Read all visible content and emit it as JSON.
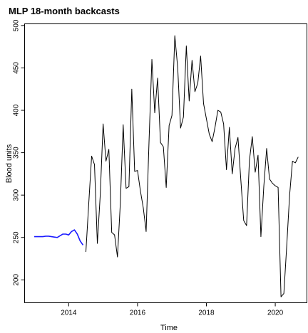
{
  "chart_data": {
    "type": "line",
    "title": "MLP 18-month backcasts",
    "xlabel": "Time",
    "ylabel": "Blood units",
    "xlim": [
      2012.72,
      2020.92
    ],
    "ylim": [
      173,
      502
    ],
    "x_ticks": [
      2014,
      2016,
      2018,
      2020
    ],
    "x_tick_labels": [
      "2014",
      "2016",
      "2018",
      "2020"
    ],
    "y_ticks": [
      200,
      250,
      300,
      350,
      400,
      450,
      500
    ],
    "y_tick_labels": [
      "200",
      "250",
      "300",
      "350",
      "400",
      "450",
      "500"
    ],
    "grid": false,
    "series": [
      {
        "color": "#1a1aff",
        "x": [
          2013.0,
          2013.083,
          2013.167,
          2013.25,
          2013.333,
          2013.417,
          2013.5,
          2013.583,
          2013.667,
          2013.75,
          2013.833,
          2013.917,
          2014.0,
          2014.083,
          2014.167,
          2014.25,
          2014.333,
          2014.417
        ],
        "values": [
          251,
          251,
          251,
          251,
          251.5,
          251.5,
          251,
          250.5,
          250,
          252,
          254,
          254,
          253,
          257,
          259,
          254,
          246,
          241
        ]
      },
      {
        "color": "#000000",
        "x": [
          2014.5,
          2014.583,
          2014.667,
          2014.75,
          2014.833,
          2014.917,
          2015.0,
          2015.083,
          2015.167,
          2015.25,
          2015.333,
          2015.417,
          2015.5,
          2015.583,
          2015.667,
          2015.75,
          2015.833,
          2015.917,
          2016.0,
          2016.083,
          2016.167,
          2016.25,
          2016.333,
          2016.417,
          2016.5,
          2016.583,
          2016.667,
          2016.75,
          2016.833,
          2016.917,
          2017.0,
          2017.083,
          2017.167,
          2017.25,
          2017.333,
          2017.417,
          2017.5,
          2017.583,
          2017.667,
          2017.75,
          2017.833,
          2017.917,
          2018.0,
          2018.083,
          2018.167,
          2018.25,
          2018.333,
          2018.417,
          2018.5,
          2018.583,
          2018.667,
          2018.75,
          2018.833,
          2018.917,
          2019.0,
          2019.083,
          2019.167,
          2019.25,
          2019.333,
          2019.417,
          2019.5,
          2019.583,
          2019.667,
          2019.75,
          2019.833,
          2019.917,
          2020.0,
          2020.083,
          2020.167,
          2020.25,
          2020.333,
          2020.417,
          2020.5,
          2020.583,
          2020.667
        ],
        "values": [
          233,
          290,
          346,
          336,
          243,
          300,
          384,
          340,
          354,
          256,
          253,
          227,
          290,
          383,
          308,
          310,
          425,
          328,
          329,
          305,
          285,
          257,
          362,
          460,
          397,
          438,
          362,
          357,
          309,
          382,
          394,
          488,
          450,
          379,
          392,
          476,
          411,
          459,
          422,
          432,
          464,
          408,
          390,
          372,
          363,
          380,
          400,
          398,
          384,
          330,
          380,
          325,
          355,
          368,
          318,
          270,
          264,
          341,
          369,
          327,
          347,
          251,
          310,
          355,
          319,
          314,
          311,
          309,
          180,
          184,
          240,
          300,
          340,
          338,
          345
        ]
      }
    ]
  }
}
